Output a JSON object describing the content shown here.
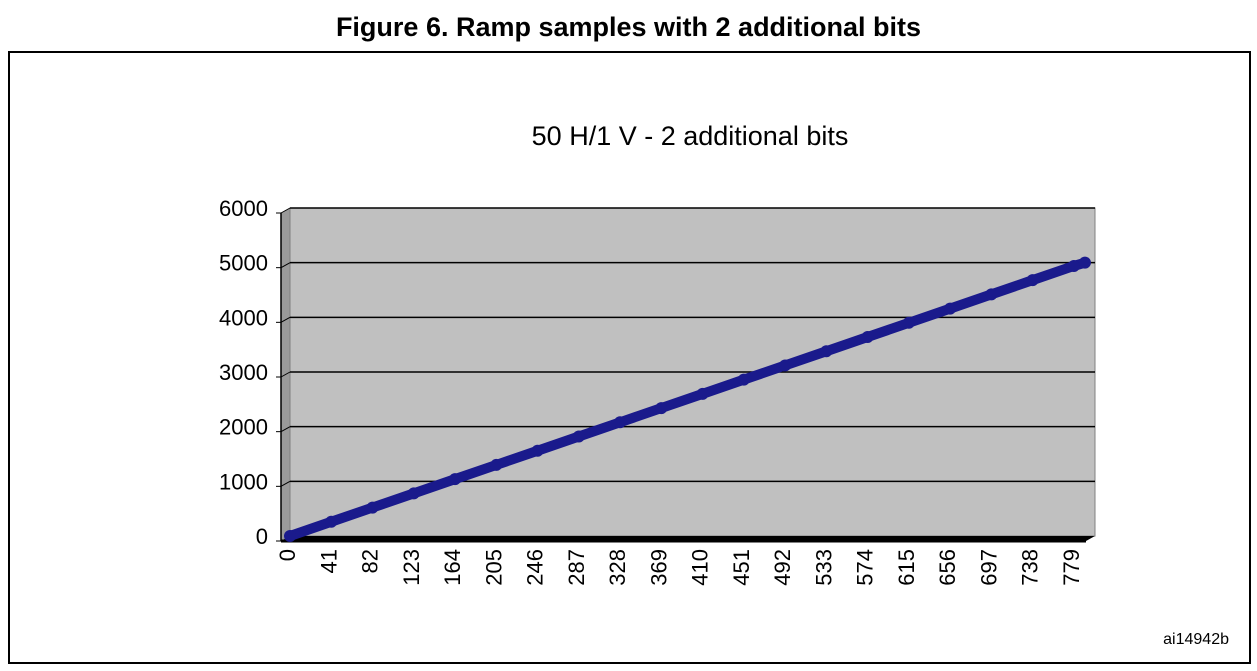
{
  "figure": {
    "caption": "Figure 6. Ramp samples with 2 additional bits",
    "reference": "ai14942b"
  },
  "chart_data": {
    "type": "line",
    "title": "50 H/1 V - 2 additional bits",
    "xlabel": "",
    "ylabel": "",
    "x_tick_labels": [
      "0",
      "41",
      "82",
      "123",
      "164",
      "205",
      "246",
      "287",
      "328",
      "369",
      "410",
      "451",
      "492",
      "533",
      "574",
      "615",
      "656",
      "697",
      "738",
      "779"
    ],
    "y_tick_labels": [
      "0",
      "1000",
      "2000",
      "3000",
      "4000",
      "5000",
      "6000"
    ],
    "ylim": [
      0,
      6000
    ],
    "grid": true,
    "legend": "none",
    "plot_bg_color": "#c0c0c0",
    "series_color": "#1a1a8c",
    "series": [
      {
        "x": [
          0,
          41,
          82,
          123,
          164,
          205,
          246,
          287,
          328,
          369,
          410,
          451,
          492,
          533,
          574,
          615,
          656,
          697,
          738,
          779,
          790
        ],
        "values": [
          0,
          260,
          520,
          780,
          1040,
          1300,
          1560,
          1820,
          2080,
          2340,
          2600,
          2860,
          3120,
          3380,
          3640,
          3900,
          4160,
          4420,
          4680,
          4940,
          5000
        ]
      }
    ]
  }
}
